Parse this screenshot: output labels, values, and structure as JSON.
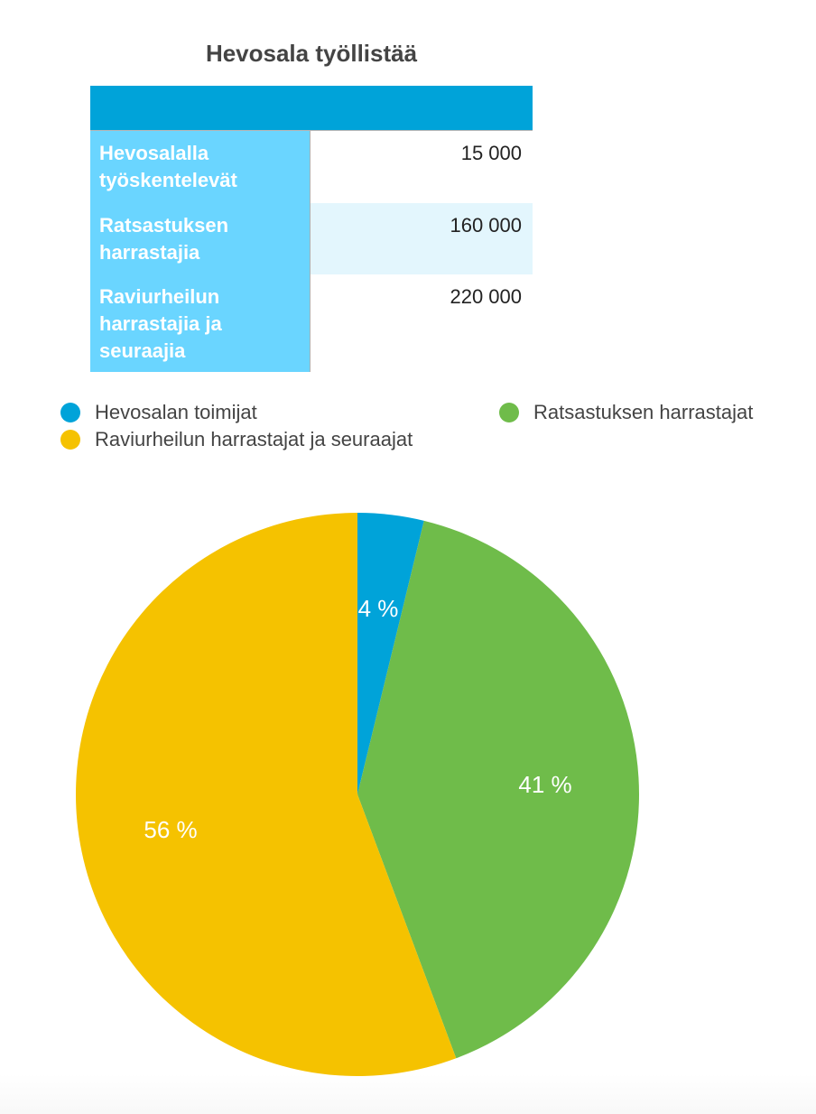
{
  "title": "Hevosala työllistää",
  "table": {
    "rows": [
      {
        "label": "Hevosalalla työskentelevät",
        "value": "15 000"
      },
      {
        "label": "Ratsastuksen harrastajia",
        "value": "160 000"
      },
      {
        "label": "Raviurheilun harrastajia ja seuraajia",
        "value": "220 000"
      }
    ],
    "colors": {
      "header": "#00a3d9",
      "label_bg": "#6ad5ff",
      "stripe": "#e3f6fd"
    }
  },
  "legend": [
    {
      "label": "Hevosalan toimijat",
      "color": "#00a3d9"
    },
    {
      "label": "Ratsastuksen harrastajat",
      "color": "#6fbc4a"
    },
    {
      "label": "Raviurheilun harrastajat ja seuraajat",
      "color": "#f5c200"
    }
  ],
  "chart_data": {
    "type": "pie",
    "title": "Hevosala työllistää",
    "categories": [
      "Hevosalan toimijat",
      "Ratsastuksen harrastajat",
      "Raviurheilun harrastajat ja seuraajat"
    ],
    "values": [
      15000,
      160000,
      220000
    ],
    "percent_labels": [
      "4 %",
      "41 %",
      "56 %"
    ],
    "colors": [
      "#00a3d9",
      "#6fbc4a",
      "#f5c200"
    ],
    "start_angle": "12 o'clock, clockwise",
    "legend_position": "top"
  }
}
